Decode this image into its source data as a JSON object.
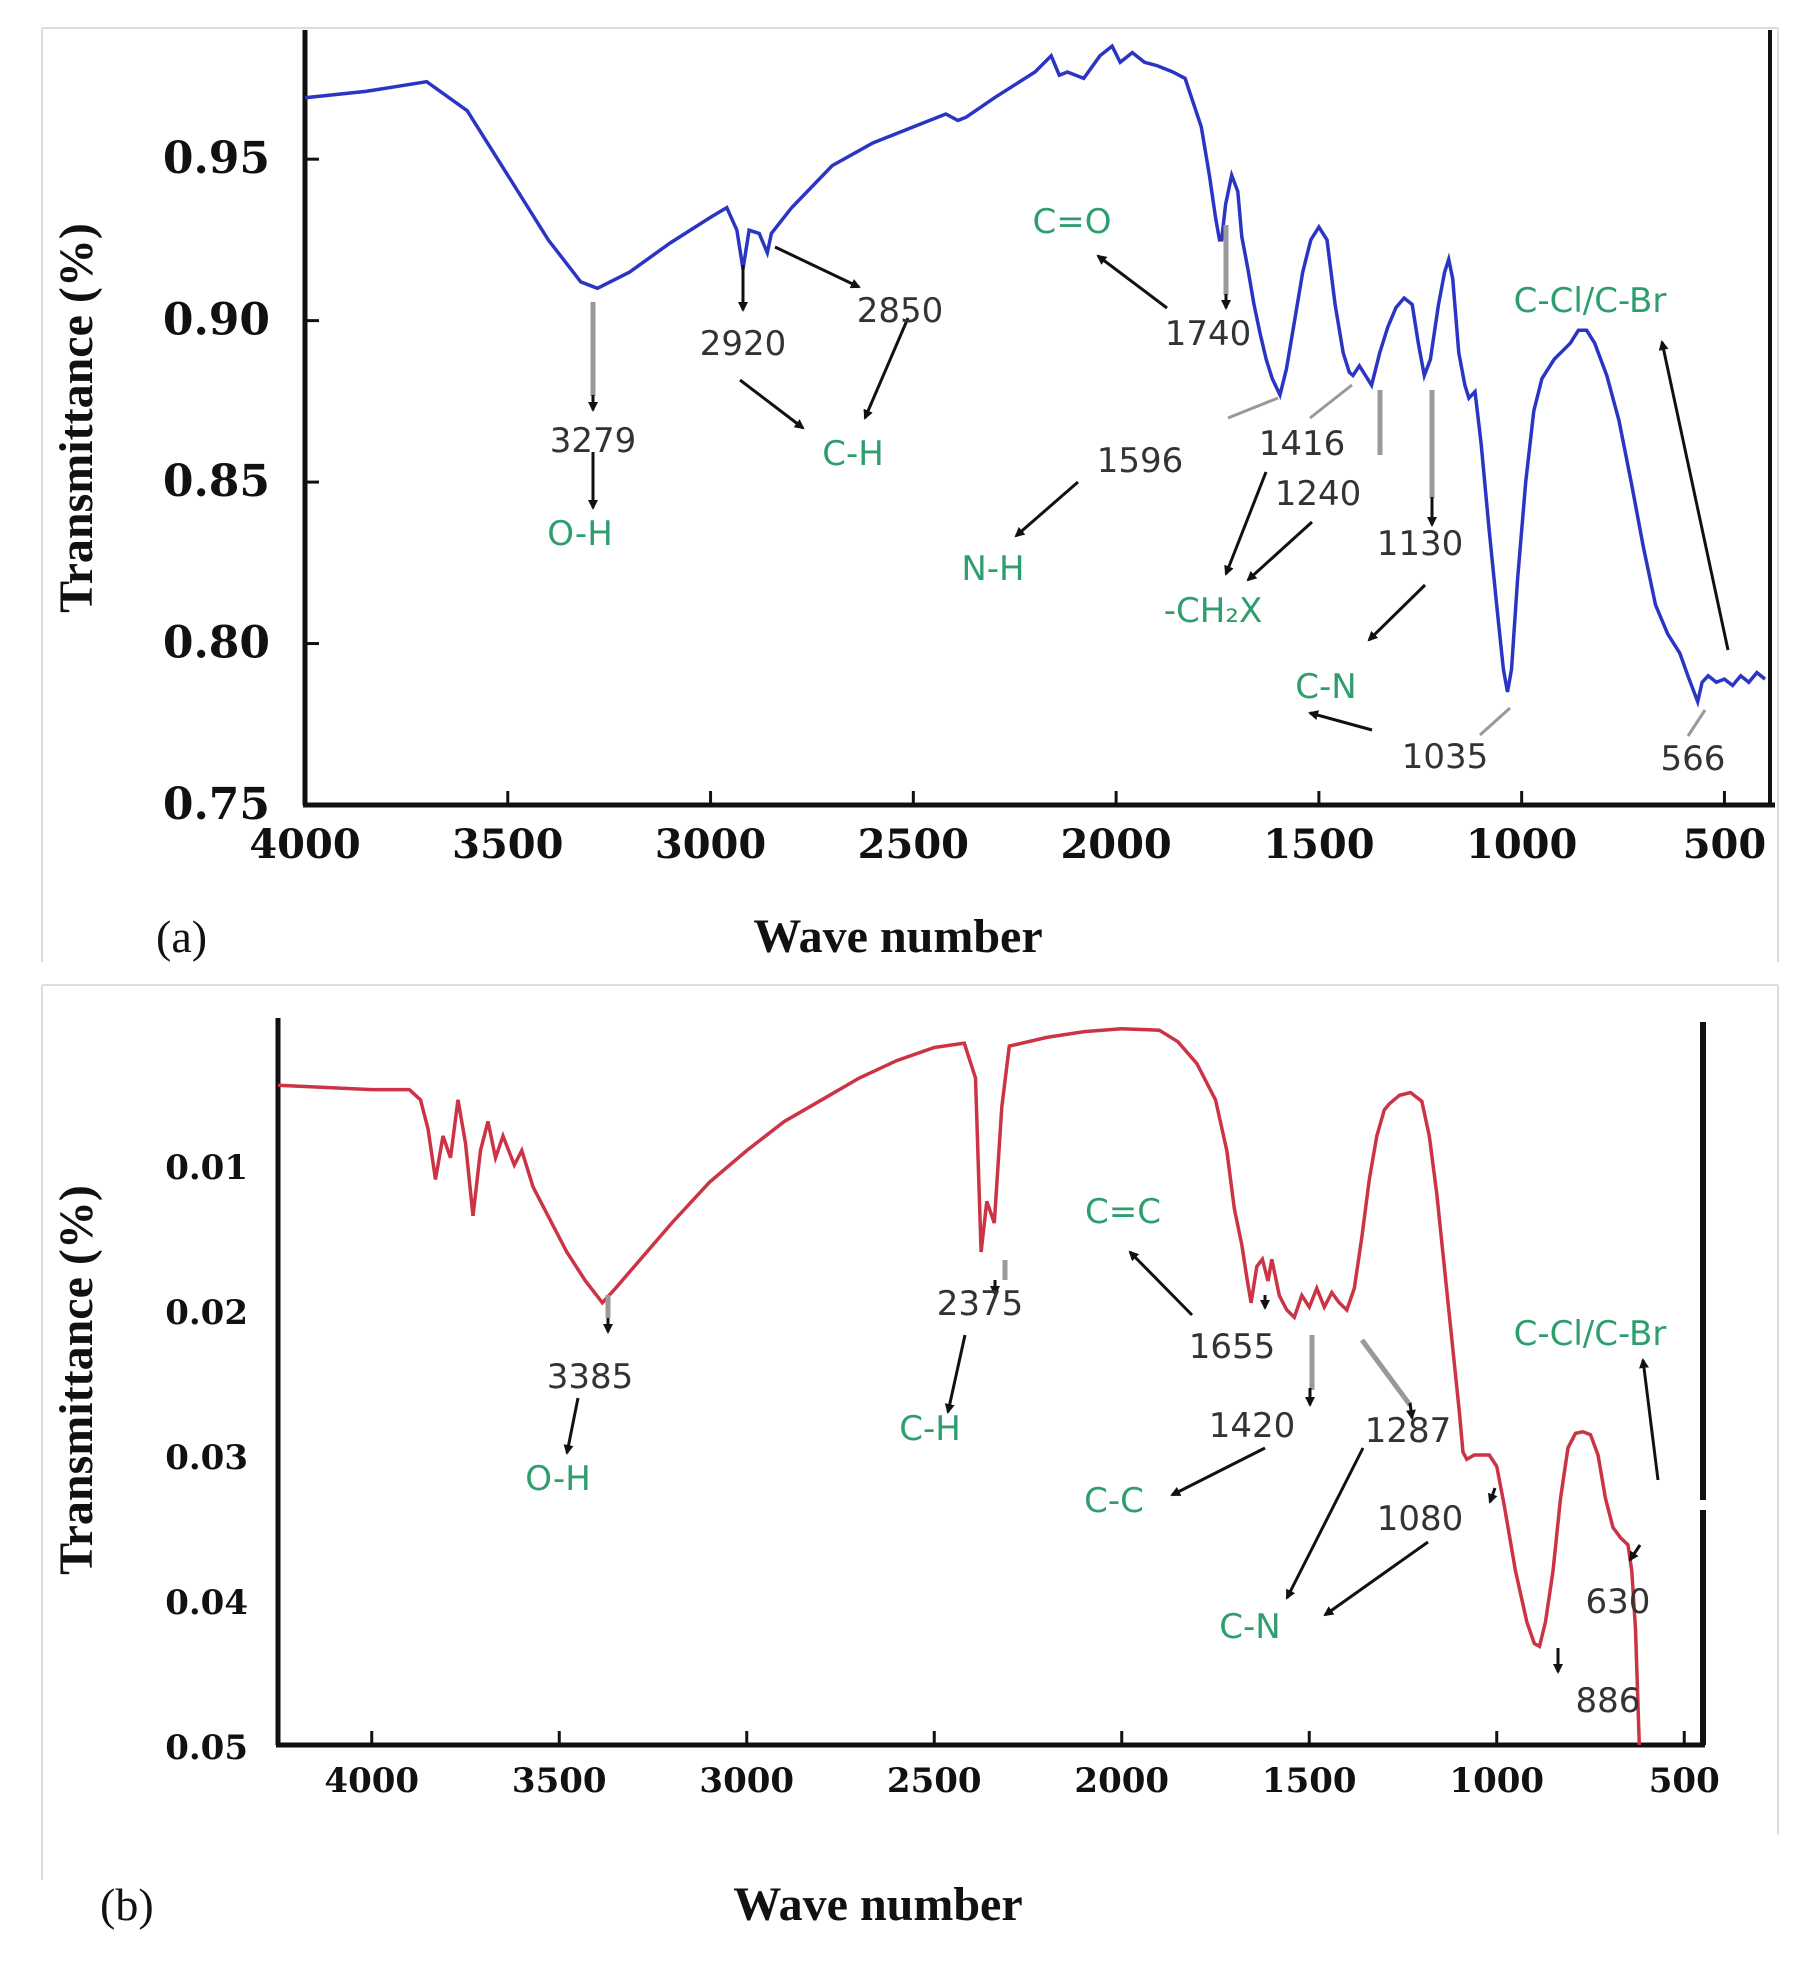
{
  "chart_data": [
    {
      "panel_label": "(a)",
      "type": "line",
      "xlabel": "Wave number",
      "ylabel": "Transmittance (%)",
      "xlim": [
        4000,
        400
      ],
      "ylim": [
        0.75,
        0.99
      ],
      "x_ticks": [
        "4000",
        "3500",
        "3000",
        "2500",
        "2000",
        "1500",
        "1000",
        "500"
      ],
      "y_ticks": [
        "0.95",
        "0.90",
        "0.85",
        "0.80",
        "0.75"
      ],
      "color": "#2b35c4",
      "series": [
        {
          "name": "(a)",
          "points": [
            [
              4000,
              0.969
            ],
            [
              3850,
              0.971
            ],
            [
              3700,
              0.974
            ],
            [
              3600,
              0.965
            ],
            [
              3500,
              0.945
            ],
            [
              3400,
              0.925
            ],
            [
              3320,
              0.912
            ],
            [
              3279,
              0.91
            ],
            [
              3200,
              0.915
            ],
            [
              3100,
              0.924
            ],
            [
              3000,
              0.932
            ],
            [
              2960,
              0.935
            ],
            [
              2935,
              0.928
            ],
            [
              2920,
              0.916
            ],
            [
              2905,
              0.928
            ],
            [
              2880,
              0.927
            ],
            [
              2860,
              0.921
            ],
            [
              2850,
              0.927
            ],
            [
              2800,
              0.935
            ],
            [
              2700,
              0.948
            ],
            [
              2600,
              0.955
            ],
            [
              2500,
              0.96
            ],
            [
              2420,
              0.964
            ],
            [
              2390,
              0.962
            ],
            [
              2370,
              0.963
            ],
            [
              2300,
              0.969
            ],
            [
              2200,
              0.977
            ],
            [
              2160,
              0.982
            ],
            [
              2140,
              0.976
            ],
            [
              2120,
              0.977
            ],
            [
              2080,
              0.975
            ],
            [
              2040,
              0.982
            ],
            [
              2010,
              0.985
            ],
            [
              1990,
              0.98
            ],
            [
              1960,
              0.983
            ],
            [
              1930,
              0.98
            ],
            [
              1900,
              0.979
            ],
            [
              1860,
              0.977
            ],
            [
              1830,
              0.975
            ],
            [
              1790,
              0.96
            ],
            [
              1770,
              0.945
            ],
            [
              1755,
              0.932
            ],
            [
              1745,
              0.925
            ],
            [
              1740,
              0.925
            ],
            [
              1730,
              0.936
            ],
            [
              1715,
              0.945
            ],
            [
              1700,
              0.94
            ],
            [
              1690,
              0.926
            ],
            [
              1675,
              0.916
            ],
            [
              1660,
              0.905
            ],
            [
              1645,
              0.896
            ],
            [
              1630,
              0.888
            ],
            [
              1615,
              0.882
            ],
            [
              1596,
              0.877
            ],
            [
              1580,
              0.885
            ],
            [
              1560,
              0.9
            ],
            [
              1540,
              0.915
            ],
            [
              1520,
              0.925
            ],
            [
              1500,
              0.929
            ],
            [
              1480,
              0.925
            ],
            [
              1460,
              0.905
            ],
            [
              1440,
              0.89
            ],
            [
              1425,
              0.884
            ],
            [
              1416,
              0.883
            ],
            [
              1400,
              0.886
            ],
            [
              1385,
              0.883
            ],
            [
              1370,
              0.88
            ],
            [
              1350,
              0.89
            ],
            [
              1330,
              0.898
            ],
            [
              1310,
              0.904
            ],
            [
              1290,
              0.907
            ],
            [
              1270,
              0.905
            ],
            [
              1255,
              0.893
            ],
            [
              1240,
              0.883
            ],
            [
              1225,
              0.888
            ],
            [
              1205,
              0.905
            ],
            [
              1190,
              0.915
            ],
            [
              1180,
              0.919
            ],
            [
              1170,
              0.913
            ],
            [
              1155,
              0.89
            ],
            [
              1140,
              0.88
            ],
            [
              1130,
              0.876
            ],
            [
              1115,
              0.878
            ],
            [
              1100,
              0.862
            ],
            [
              1080,
              0.835
            ],
            [
              1060,
              0.81
            ],
            [
              1045,
              0.792
            ],
            [
              1035,
              0.785
            ],
            [
              1025,
              0.792
            ],
            [
              1010,
              0.82
            ],
            [
              990,
              0.85
            ],
            [
              970,
              0.872
            ],
            [
              950,
              0.882
            ],
            [
              920,
              0.888
            ],
            [
              880,
              0.893
            ],
            [
              860,
              0.897
            ],
            [
              840,
              0.897
            ],
            [
              820,
              0.893
            ],
            [
              790,
              0.883
            ],
            [
              760,
              0.869
            ],
            [
              730,
              0.85
            ],
            [
              700,
              0.83
            ],
            [
              670,
              0.812
            ],
            [
              640,
              0.803
            ],
            [
              610,
              0.797
            ],
            [
              590,
              0.79
            ],
            [
              575,
              0.785
            ],
            [
              566,
              0.782
            ],
            [
              555,
              0.788
            ],
            [
              540,
              0.79
            ],
            [
              520,
              0.788
            ],
            [
              500,
              0.789
            ],
            [
              480,
              0.787
            ],
            [
              460,
              0.79
            ],
            [
              440,
              0.788
            ],
            [
              420,
              0.791
            ],
            [
              400,
              0.789
            ]
          ]
        }
      ],
      "peak_labels": [
        "3279",
        "2920",
        "2850",
        "1740",
        "1596",
        "1416",
        "1240",
        "1130",
        "1035",
        "566"
      ],
      "group_labels": [
        "O-H",
        "C-H",
        "C=O",
        "N-H",
        "-CH₂X",
        "C-N",
        "C-Cl/C-Br"
      ]
    },
    {
      "panel_label": "(b)",
      "type": "line",
      "xlabel": "Wave number",
      "ylabel": "Transmittance (%)",
      "xlim": [
        4250,
        450
      ],
      "ylim": [
        0.0,
        0.05
      ],
      "y_inverted": true,
      "x_ticks": [
        "4000",
        "3500",
        "3000",
        "2500",
        "2000",
        "1500",
        "1000",
        "500"
      ],
      "y_ticks": [
        "0.01",
        "0.02",
        "0.03",
        "0.04",
        "0.05"
      ],
      "color": "#cc3344",
      "series": [
        {
          "name": "(b)",
          "points": [
            [
              4250,
              0.0045
            ],
            [
              4000,
              0.0048
            ],
            [
              3900,
              0.0048
            ],
            [
              3870,
              0.0055
            ],
            [
              3850,
              0.0075
            ],
            [
              3830,
              0.011
            ],
            [
              3810,
              0.008
            ],
            [
              3790,
              0.0095
            ],
            [
              3770,
              0.0055
            ],
            [
              3750,
              0.0085
            ],
            [
              3730,
              0.0135
            ],
            [
              3710,
              0.009
            ],
            [
              3690,
              0.007
            ],
            [
              3670,
              0.0095
            ],
            [
              3650,
              0.008
            ],
            [
              3620,
              0.01
            ],
            [
              3600,
              0.009
            ],
            [
              3570,
              0.0115
            ],
            [
              3530,
              0.0135
            ],
            [
              3480,
              0.016
            ],
            [
              3430,
              0.018
            ],
            [
              3385,
              0.0195
            ],
            [
              3350,
              0.0185
            ],
            [
              3300,
              0.017
            ],
            [
              3200,
              0.014
            ],
            [
              3100,
              0.0112
            ],
            [
              3000,
              0.009
            ],
            [
              2900,
              0.007
            ],
            [
              2800,
              0.0055
            ],
            [
              2700,
              0.004
            ],
            [
              2600,
              0.0028
            ],
            [
              2500,
              0.0019
            ],
            [
              2420,
              0.0016
            ],
            [
              2390,
              0.004
            ],
            [
              2375,
              0.016
            ],
            [
              2360,
              0.0125
            ],
            [
              2340,
              0.014
            ],
            [
              2320,
              0.006
            ],
            [
              2300,
              0.0018
            ],
            [
              2200,
              0.0012
            ],
            [
              2100,
              0.0008
            ],
            [
              2000,
              0.0006
            ],
            [
              1900,
              0.0007
            ],
            [
              1850,
              0.0015
            ],
            [
              1800,
              0.003
            ],
            [
              1750,
              0.0055
            ],
            [
              1720,
              0.009
            ],
            [
              1700,
              0.013
            ],
            [
              1680,
              0.0155
            ],
            [
              1665,
              0.018
            ],
            [
              1655,
              0.0195
            ],
            [
              1640,
              0.017
            ],
            [
              1625,
              0.0165
            ],
            [
              1610,
              0.018
            ],
            [
              1600,
              0.0165
            ],
            [
              1580,
              0.019
            ],
            [
              1560,
              0.02
            ],
            [
              1540,
              0.0205
            ],
            [
              1520,
              0.019
            ],
            [
              1500,
              0.0198
            ],
            [
              1480,
              0.0185
            ],
            [
              1460,
              0.0198
            ],
            [
              1440,
              0.0188
            ],
            [
              1420,
              0.0195
            ],
            [
              1400,
              0.02
            ],
            [
              1380,
              0.0185
            ],
            [
              1360,
              0.015
            ],
            [
              1340,
              0.011
            ],
            [
              1320,
              0.008
            ],
            [
              1300,
              0.0062
            ],
            [
              1287,
              0.0058
            ],
            [
              1260,
              0.0052
            ],
            [
              1230,
              0.005
            ],
            [
              1200,
              0.0056
            ],
            [
              1180,
              0.008
            ],
            [
              1160,
              0.012
            ],
            [
              1140,
              0.017
            ],
            [
              1120,
              0.022
            ],
            [
              1100,
              0.027
            ],
            [
              1090,
              0.0298
            ],
            [
              1080,
              0.0303
            ],
            [
              1060,
              0.03
            ],
            [
              1040,
              0.03
            ],
            [
              1020,
              0.03
            ],
            [
              1000,
              0.0308
            ],
            [
              980,
              0.0335
            ],
            [
              950,
              0.038
            ],
            [
              920,
              0.0415
            ],
            [
              900,
              0.043
            ],
            [
              886,
              0.0432
            ],
            [
              870,
              0.0415
            ],
            [
              850,
              0.038
            ],
            [
              830,
              0.033
            ],
            [
              810,
              0.0295
            ],
            [
              790,
              0.0285
            ],
            [
              770,
              0.0284
            ],
            [
              750,
              0.0286
            ],
            [
              730,
              0.03
            ],
            [
              710,
              0.033
            ],
            [
              690,
              0.035
            ],
            [
              670,
              0.0357
            ],
            [
              650,
              0.0362
            ],
            [
              640,
              0.038
            ],
            [
              630,
              0.042
            ],
            [
              620,
              0.05
            ]
          ]
        }
      ],
      "peak_labels": [
        "3385",
        "2375",
        "1655",
        "1420",
        "1287",
        "1080",
        "886",
        "630"
      ],
      "group_labels": [
        "O-H",
        "C-H",
        "C=C",
        "C-C",
        "C-N",
        "C-Cl/C-Br"
      ]
    }
  ]
}
